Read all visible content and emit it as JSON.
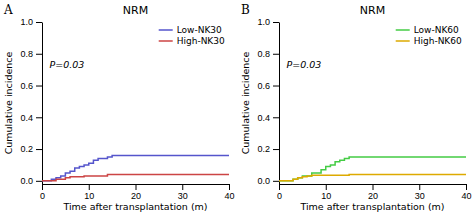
{
  "chart_data": [
    {
      "type": "step",
      "title": "NRM",
      "x_label": "Time after transplantation (m)",
      "y_label": "Cumulative incidence",
      "annotations": [
        "A",
        "P=0.03"
      ],
      "xlim": [
        0,
        40
      ],
      "ylim": [
        -0.02,
        1.0
      ],
      "xticks": [
        0,
        10,
        20,
        30,
        40
      ],
      "yticks": [
        {
          "value": 0.0,
          "label": "0.0"
        },
        {
          "value": 0.2,
          "label": "0.2"
        },
        {
          "value": 0.4,
          "label": "0.4"
        },
        {
          "value": 0.6,
          "label": "0.6"
        },
        {
          "value": 0.8,
          "label": "0.8"
        },
        {
          "value": 1.0,
          "label": "1.0"
        }
      ],
      "grid": false,
      "legend": "upper right",
      "series": [
        {
          "name": "Low-NK30",
          "color": "#5555cc",
          "x": [
            0,
            2.0,
            3.0,
            4.0,
            5.0,
            6.0,
            7.0,
            8.0,
            9.0,
            10.0,
            11.0,
            12.0,
            13.0,
            14.0,
            15.0,
            16.0,
            40.0
          ],
          "values": [
            0.0,
            0.01,
            0.02,
            0.03,
            0.05,
            0.06,
            0.08,
            0.09,
            0.1,
            0.11,
            0.13,
            0.14,
            0.14,
            0.15,
            0.16,
            0.16,
            0.16
          ]
        },
        {
          "name": "High-NK30",
          "color": "#cc4444",
          "x": [
            0,
            3.0,
            5.0,
            6.0,
            9.0,
            14.0,
            40.0
          ],
          "values": [
            0.0,
            0.01,
            0.02,
            0.025,
            0.03,
            0.04,
            0.04
          ]
        }
      ]
    },
    {
      "type": "step",
      "title": "NRM",
      "x_label": "Time after transplantation (m)",
      "y_label": "Cumulative incidence",
      "annotations": [
        "B",
        "P=0.03"
      ],
      "xlim": [
        0,
        40
      ],
      "ylim": [
        -0.02,
        1.0
      ],
      "xticks": [
        0,
        10,
        20,
        30,
        40
      ],
      "yticks": [
        {
          "value": 0.0,
          "label": "0.0"
        },
        {
          "value": 0.2,
          "label": "0.2"
        },
        {
          "value": 0.4,
          "label": "0.4"
        },
        {
          "value": 0.6,
          "label": "0.6"
        },
        {
          "value": 0.8,
          "label": "0.8"
        },
        {
          "value": 1.0,
          "label": "1.0"
        }
      ],
      "grid": false,
      "legend": "upper right",
      "series": [
        {
          "name": "Low-NK60",
          "color": "#44cc44",
          "x": [
            0,
            3.0,
            4.0,
            5.0,
            7.0,
            9.0,
            10.0,
            11.0,
            12.0,
            13.0,
            14.0,
            15.0,
            16.0,
            40.0
          ],
          "values": [
            0.0,
            0.01,
            0.02,
            0.03,
            0.05,
            0.07,
            0.09,
            0.1,
            0.12,
            0.13,
            0.14,
            0.15,
            0.15,
            0.15
          ]
        },
        {
          "name": "High-NK60",
          "color": "#ddaa00",
          "x": [
            0,
            3.0,
            4.0,
            5.0,
            6.0,
            7.0,
            15.0,
            40.0
          ],
          "values": [
            0.0,
            0.01,
            0.02,
            0.025,
            0.03,
            0.035,
            0.04,
            0.04
          ]
        }
      ]
    }
  ]
}
